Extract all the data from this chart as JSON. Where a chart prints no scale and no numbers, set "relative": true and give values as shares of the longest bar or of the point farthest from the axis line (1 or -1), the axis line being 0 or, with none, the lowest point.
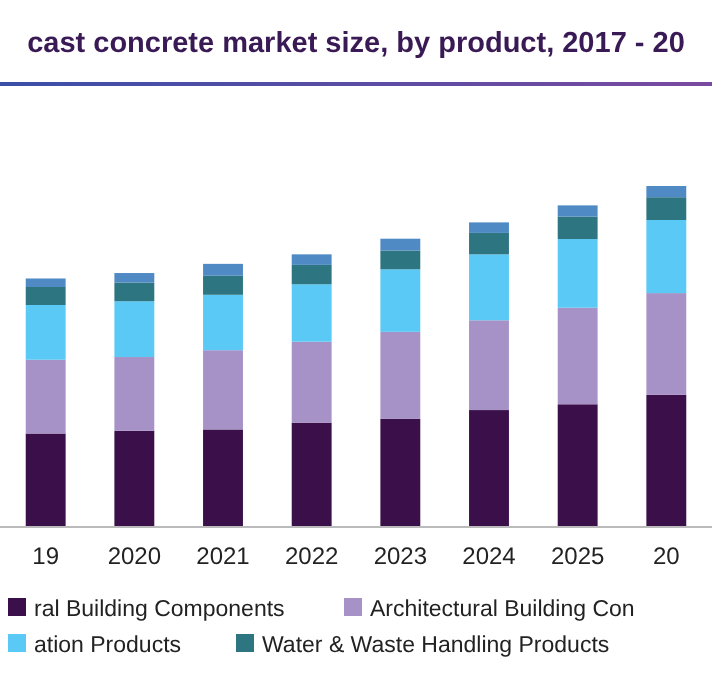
{
  "chart_data": {
    "type": "bar",
    "title": "cast concrete market size, by product, 2017 - 20",
    "categories": [
      "19",
      "2020",
      "2021",
      "2022",
      "2023",
      "2024",
      "2025",
      "20"
    ],
    "stacked": true,
    "relative": true,
    "legend": "bottom",
    "series": [
      {
        "name": "ral Building Components",
        "color": "#3a0f4a",
        "values": [
          0.272,
          0.28,
          0.284,
          0.304,
          0.315,
          0.341,
          0.358,
          0.386
        ]
      },
      {
        "name": "Architectural Building Con",
        "color": "#a692c6",
        "values": [
          0.217,
          0.217,
          0.233,
          0.238,
          0.256,
          0.264,
          0.284,
          0.299
        ]
      },
      {
        "name": "ation Products",
        "color": "#5bc9f5",
        "values": [
          0.161,
          0.164,
          0.163,
          0.169,
          0.184,
          0.194,
          0.202,
          0.215
        ]
      },
      {
        "name": "Water & Waste Handling Products",
        "color": "#2e7582",
        "values": [
          0.053,
          0.055,
          0.056,
          0.057,
          0.055,
          0.063,
          0.066,
          0.067
        ]
      },
      {
        "color": "#4f8ac4",
        "values": [
          0.025,
          0.028,
          0.035,
          0.031,
          0.035,
          0.031,
          0.033,
          0.033
        ]
      }
    ]
  }
}
